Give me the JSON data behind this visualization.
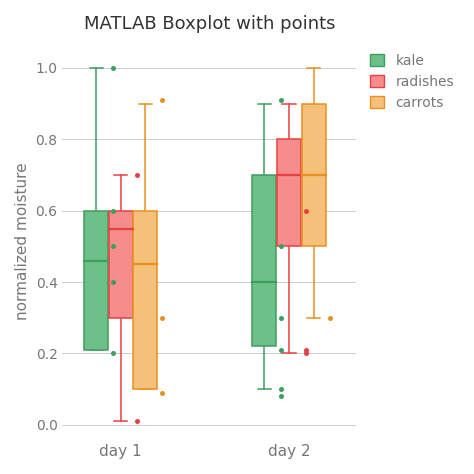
{
  "title": "MATLAB Boxplot with points",
  "ylabel": "normalized moisture",
  "days": [
    "day 1",
    "day 2"
  ],
  "categories": [
    "kale",
    "radishes",
    "carrots"
  ],
  "colors": {
    "kale": "#6dc087",
    "radishes": "#f78c8c",
    "carrots": "#f5c07a"
  },
  "edge_colors": {
    "kale": "#3d9e60",
    "radishes": "#e84040",
    "carrots": "#e89020"
  },
  "box_data": {
    "day1_kale": {
      "q1": 0.21,
      "median": 0.46,
      "q3": 0.6,
      "whislo": 0.21,
      "whishi": 1.0
    },
    "day1_radishes": {
      "q1": 0.3,
      "median": 0.55,
      "q3": 0.6,
      "whislo": 0.01,
      "whishi": 0.7
    },
    "day1_carrots": {
      "q1": 0.1,
      "median": 0.45,
      "q3": 0.6,
      "whislo": 0.1,
      "whishi": 0.9
    },
    "day2_kale": {
      "q1": 0.22,
      "median": 0.4,
      "q3": 0.7,
      "whislo": 0.1,
      "whishi": 0.9
    },
    "day2_radishes": {
      "q1": 0.5,
      "median": 0.7,
      "q3": 0.8,
      "whislo": 0.2,
      "whishi": 0.9
    },
    "day2_carrots": {
      "q1": 0.5,
      "median": 0.7,
      "q3": 0.9,
      "whislo": 0.3,
      "whishi": 1.0
    }
  },
  "scatter_points": {
    "day1_kale": [
      0.2,
      0.4,
      0.5,
      0.6,
      1.0
    ],
    "day1_radishes": [
      0.01,
      0.7
    ],
    "day1_carrots": [
      0.09,
      0.3,
      0.91
    ],
    "day2_kale": [
      0.08,
      0.1,
      0.21,
      0.3,
      0.5,
      0.91
    ],
    "day2_radishes": [
      0.2,
      0.21,
      0.6
    ],
    "day2_carrots": [
      0.3
    ]
  },
  "ylim": [
    -0.04,
    1.07
  ],
  "yticks": [
    0,
    0.2,
    0.4,
    0.6,
    0.8,
    1.0
  ],
  "background_color": "#ffffff",
  "grid_color": "#cccccc",
  "day_centers": [
    1.0,
    2.3
  ],
  "offsets": [
    -0.19,
    0.0,
    0.19
  ],
  "box_width": 0.185
}
